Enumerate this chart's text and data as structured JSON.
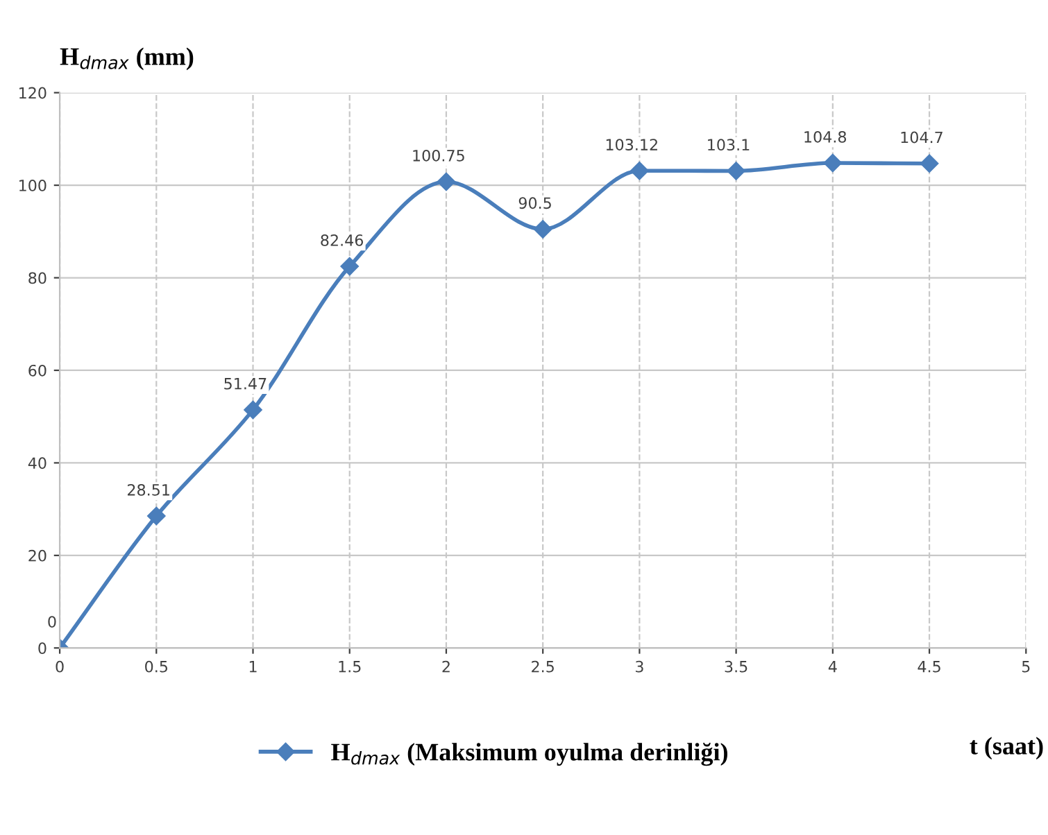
{
  "chart_data": {
    "type": "line",
    "xlabel": "t (saat)",
    "ylabel": "H$_{dmax}$ (mm)",
    "x": [
      0,
      0.5,
      1,
      1.5,
      2,
      2.5,
      3,
      3.5,
      4,
      4.5
    ],
    "series": [
      {
        "name": "H$_{dmax}$ (Maksimum oyulma derinliği)",
        "color": "#4a7ebb",
        "values": [
          0,
          28.51,
          51.47,
          82.46,
          100.75,
          90.5,
          103.12,
          103.1,
          104.8,
          104.7
        ]
      }
    ],
    "xlim": [
      0,
      5
    ],
    "xticks": [
      0,
      0.5,
      1,
      1.5,
      2,
      2.5,
      3,
      3.5,
      4,
      4.5,
      5
    ],
    "ylim": [
      0,
      120
    ],
    "yticks": [
      0,
      20,
      40,
      60,
      80,
      100,
      120
    ],
    "grid": true,
    "legend": "bottom",
    "marker": "diamond",
    "line_style": "solid",
    "data_labels": true
  }
}
